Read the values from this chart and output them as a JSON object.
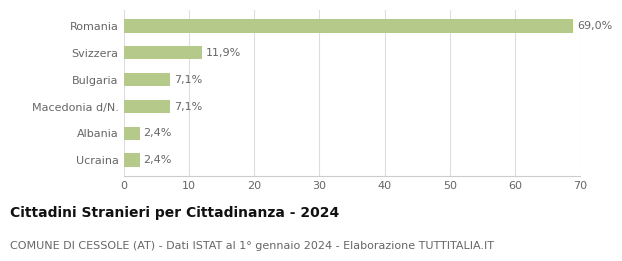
{
  "categories": [
    "Ucraina",
    "Albania",
    "Macedonia d/N.",
    "Bulgaria",
    "Svizzera",
    "Romania"
  ],
  "values": [
    2.4,
    2.4,
    7.1,
    7.1,
    11.9,
    69.0
  ],
  "labels": [
    "2,4%",
    "2,4%",
    "7,1%",
    "7,1%",
    "11,9%",
    "69,0%"
  ],
  "bar_color": "#b5c98a",
  "background_color": "#ffffff",
  "title": "Cittadini Stranieri per Cittadinanza - 2024",
  "subtitle": "COMUNE DI CESSOLE (AT) - Dati ISTAT al 1° gennaio 2024 - Elaborazione TUTTITALIA.IT",
  "xlim": [
    0,
    70
  ],
  "xticks": [
    0,
    10,
    20,
    30,
    40,
    50,
    60,
    70
  ],
  "title_fontsize": 10,
  "subtitle_fontsize": 8,
  "label_fontsize": 8,
  "tick_fontsize": 8,
  "bar_height": 0.5,
  "grid_color": "#dddddd",
  "spine_color": "#cccccc",
  "text_color": "#666666",
  "title_color": "#111111"
}
